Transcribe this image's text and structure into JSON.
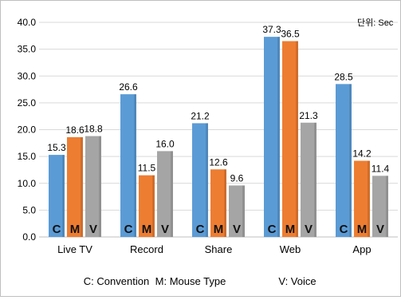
{
  "unit_note": "단위: Sec",
  "chart_data": {
    "type": "bar",
    "categories": [
      "Live TV",
      "Record",
      "Share",
      "Web",
      "App"
    ],
    "series": [
      {
        "name": "C",
        "values": [
          15.3,
          26.6,
          21.2,
          37.3,
          28.5
        ],
        "color": "#5b9bd5",
        "bar_label": "C"
      },
      {
        "name": "M",
        "values": [
          18.6,
          11.5,
          12.6,
          36.5,
          14.2
        ],
        "color": "#ed7d31",
        "bar_label": "M"
      },
      {
        "name": "V",
        "values": [
          18.8,
          16.0,
          9.6,
          21.3,
          11.4
        ],
        "color": "#a5a5a5",
        "bar_label": "V"
      }
    ],
    "data_labels": [
      [
        "15.3",
        "26.6",
        "21.2",
        "37.3",
        "28.5"
      ],
      [
        "18.6",
        "11.5",
        "12.6",
        "36.5",
        "14.2"
      ],
      [
        "18.8",
        "16.0",
        "9.6",
        "21.3",
        "11.4"
      ]
    ],
    "y_ticks": [
      "0.0",
      "5.0",
      "10.0",
      "15.0",
      "20.0",
      "25.0",
      "30.0",
      "35.0",
      "40.0"
    ],
    "ylim": [
      0,
      40
    ],
    "grid": true,
    "legend_placement": "bottom",
    "legend": [
      "C: Convention",
      "M: Mouse Type",
      "V: Voice"
    ]
  }
}
